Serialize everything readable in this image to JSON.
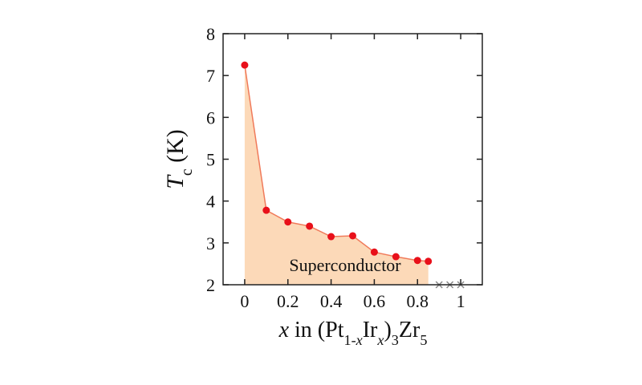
{
  "chart_data": {
    "type": "line",
    "ylabel": [
      {
        "text": "T",
        "style": "italic"
      },
      {
        "text": "c",
        "style": "sub"
      },
      {
        "text": " (K)",
        "style": "normal"
      }
    ],
    "xlabel": [
      {
        "text": "x",
        "style": "italic"
      },
      {
        "text": " in  (Pt",
        "style": "normal"
      },
      {
        "text": "1-",
        "style": "sub"
      },
      {
        "text": "x",
        "style": "sub-italic"
      },
      {
        "text": "Ir",
        "style": "normal"
      },
      {
        "text": "x",
        "style": "sub-italic"
      },
      {
        "text": ")",
        "style": "normal"
      },
      {
        "text": "3",
        "style": "sub"
      },
      {
        "text": "Zr",
        "style": "normal"
      },
      {
        "text": "5",
        "style": "sub"
      }
    ],
    "annotation": "Superconductor",
    "xlim": [
      -0.1,
      1.1
    ],
    "ylim": [
      2,
      8
    ],
    "xticks": [
      0,
      0.2,
      0.4,
      0.6,
      0.8,
      1
    ],
    "yticks": [
      2,
      3,
      4,
      5,
      6,
      7,
      8
    ],
    "series": [
      {
        "color": "#e8101a",
        "line_color": "#f07a5a",
        "fill_color": "#fcd9b8",
        "x": [
          0,
          0.1,
          0.2,
          0.3,
          0.4,
          0.5,
          0.6,
          0.7,
          0.8,
          0.85
        ],
        "values": [
          7.25,
          3.78,
          3.5,
          3.4,
          3.15,
          3.17,
          2.78,
          2.67,
          2.58,
          2.56
        ]
      }
    ],
    "non_superconducting": {
      "color": "#888888",
      "x": [
        0.9,
        0.95,
        1.0
      ],
      "values": [
        2,
        2,
        2
      ]
    }
  }
}
